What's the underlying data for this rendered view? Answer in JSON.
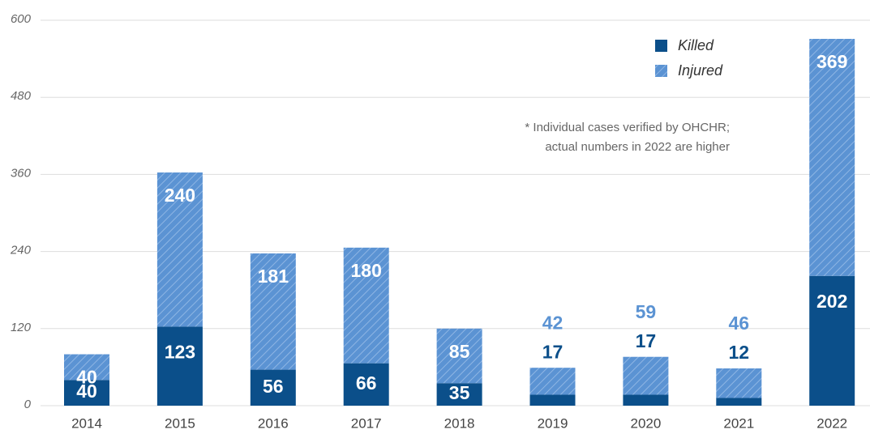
{
  "chart_data": {
    "type": "stacked_bar",
    "categories": [
      "2014",
      "2015",
      "2016",
      "2017",
      "2018",
      "2019",
      "2020",
      "2021",
      "2022"
    ],
    "series": [
      {
        "name": "Killed",
        "color": "#0b4f8a",
        "values": [
          40,
          123,
          56,
          66,
          35,
          17,
          17,
          12,
          202
        ]
      },
      {
        "name": "Injured",
        "color": "#5b93d3",
        "hatched": true,
        "values": [
          40,
          240,
          181,
          180,
          85,
          42,
          59,
          46,
          369
        ]
      }
    ],
    "ylim": [
      0,
      600
    ],
    "yticks": [
      0,
      120,
      240,
      360,
      480,
      600
    ],
    "grid": true,
    "legend": "top-right",
    "annotation": [
      "* Individual cases verified by OHCHR;",
      "actual numbers in 2022 are higher"
    ]
  }
}
